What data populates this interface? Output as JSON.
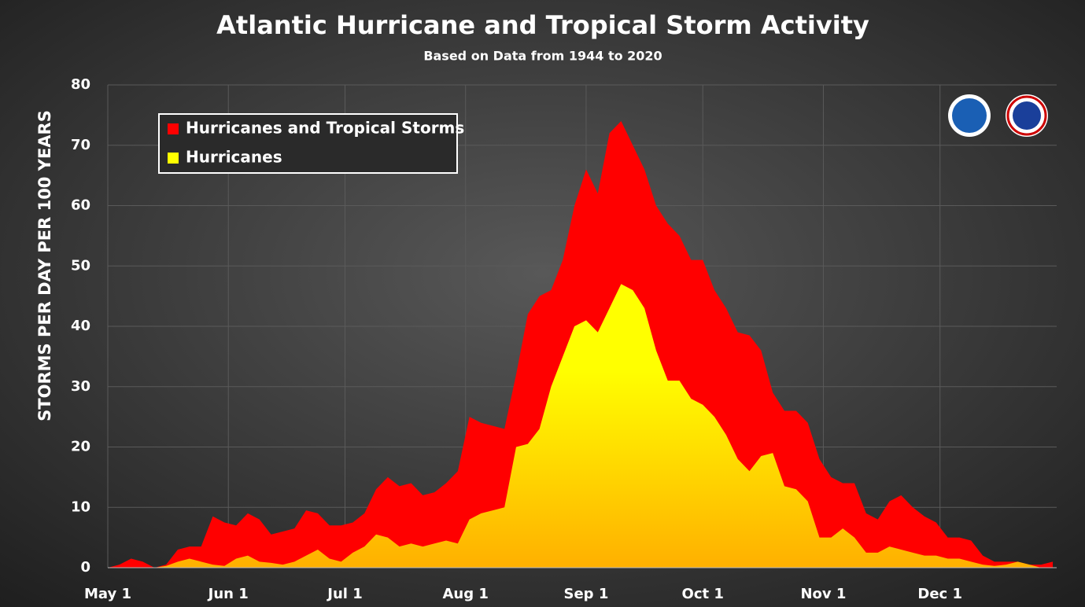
{
  "chart_data": {
    "type": "area",
    "title": "Atlantic Hurricane and Tropical Storm Activity",
    "subtitle": "Based on Data from 1944 to 2020",
    "y_label": "STORMS PER DAY PER 100 YEARS",
    "x": [
      0,
      3,
      6,
      9,
      12,
      15,
      18,
      21,
      24,
      27,
      30,
      33,
      36,
      39,
      42,
      45,
      48,
      51,
      54,
      57,
      60,
      63,
      66,
      69,
      72,
      75,
      78,
      81,
      84,
      87,
      90,
      93,
      96,
      99,
      102,
      105,
      108,
      111,
      114,
      117,
      120,
      123,
      126,
      129,
      132,
      135,
      138,
      141,
      144,
      147,
      150,
      153,
      156,
      159,
      162,
      165,
      168,
      171,
      174,
      177,
      180,
      183,
      186,
      189,
      192,
      195,
      198,
      201,
      204,
      207,
      210,
      213,
      216,
      219,
      222,
      225,
      228,
      231,
      234,
      237,
      240,
      243
    ],
    "xlim": [
      0,
      244
    ],
    "xticks": [
      {
        "value": 0,
        "label": "May 1"
      },
      {
        "value": 31,
        "label": "Jun 1"
      },
      {
        "value": 61,
        "label": "Jul 1"
      },
      {
        "value": 92,
        "label": "Aug 1"
      },
      {
        "value": 123,
        "label": "Sep 1"
      },
      {
        "value": 153,
        "label": "Oct 1"
      },
      {
        "value": 184,
        "label": "Nov 1"
      },
      {
        "value": 214,
        "label": "Dec 1"
      }
    ],
    "ylim": [
      0,
      80
    ],
    "yticks": [
      0,
      10,
      20,
      30,
      40,
      50,
      60,
      70,
      80
    ],
    "grid": true,
    "legend_position": "upper-left",
    "series": [
      {
        "name": "Hurricanes and Tropical Storms",
        "color": "#ff0000",
        "values": [
          0,
          0.5,
          1.5,
          1,
          0,
          0.5,
          3,
          3.5,
          3.5,
          8.5,
          7.5,
          7,
          9,
          8,
          5.5,
          6,
          6.5,
          9.5,
          9,
          7,
          7,
          7.5,
          9,
          13,
          15,
          13.5,
          14,
          12,
          12.5,
          14,
          16,
          25,
          24,
          23.5,
          23,
          32,
          42,
          45,
          46,
          51,
          60,
          66,
          62,
          72,
          74,
          70,
          66,
          60,
          57,
          55,
          51,
          51,
          46,
          43,
          39,
          38.5,
          36,
          29,
          26,
          26,
          24,
          18,
          15,
          14,
          14,
          9,
          8,
          11,
          12,
          10,
          8.5,
          7.5,
          5,
          5,
          4.5,
          2,
          1,
          1,
          1,
          0.5,
          0.5,
          1
        ]
      },
      {
        "name": "Hurricanes",
        "color": "#ffff00",
        "values": [
          0,
          0,
          0,
          0,
          0,
          0.3,
          1,
          1.5,
          1,
          0.5,
          0.3,
          1.5,
          2,
          1,
          0.8,
          0.5,
          1,
          2,
          3,
          1.5,
          1,
          2.5,
          3.5,
          5.5,
          5,
          3.5,
          4,
          3.5,
          4,
          4.5,
          4,
          8,
          9,
          9.5,
          10,
          20,
          20.5,
          23,
          30,
          35,
          40,
          41,
          39,
          43,
          47,
          46,
          43,
          36,
          31,
          31,
          28,
          27,
          25,
          22,
          18,
          16,
          18.5,
          19,
          13.5,
          13,
          11,
          5,
          5,
          6.5,
          5,
          2.5,
          2.5,
          3.5,
          3,
          2.5,
          2,
          2,
          1.5,
          1.5,
          1,
          0.5,
          0.3,
          0.5,
          1,
          0.5,
          0,
          0
        ]
      }
    ]
  }
}
